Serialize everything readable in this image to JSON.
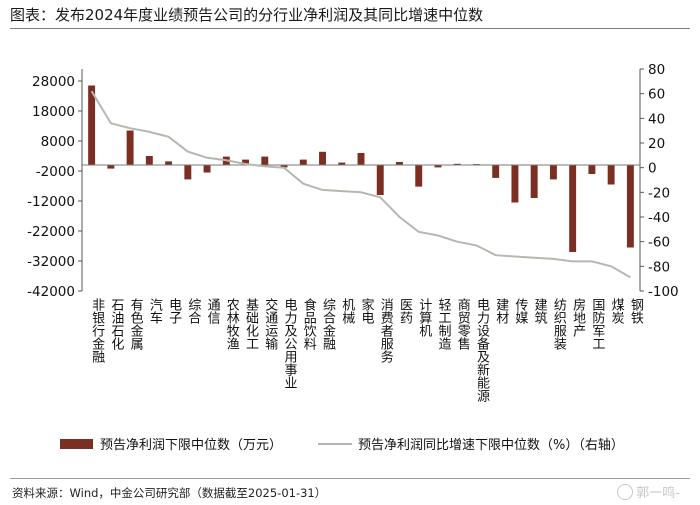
{
  "title": "图表：发布2024年度业绩预告公司的分行业净利润及其同比增速中位数",
  "source": "资料来源：Wind，中金公司研究部（数据截至2025-01-31）",
  "watermark": "郭一鸣-",
  "chart_data": {
    "type": "bar",
    "categories": [
      "非银行金融",
      "石油石化",
      "有色金属",
      "汽车",
      "电子",
      "综合",
      "通信",
      "农林牧渔",
      "基础化工",
      "交通运输",
      "电力及公用事业",
      "食品饮料",
      "综合金融",
      "机械",
      "家电",
      "消费者服务",
      "医药",
      "计算机",
      "轻工制造",
      "商贸零售",
      "电力设备及新能源",
      "建材",
      "传媒",
      "建筑",
      "纺织服装",
      "房地产",
      "国防军工",
      "煤炭",
      "钢铁"
    ],
    "series": [
      {
        "name": "预告净利润下限中位数（万元）",
        "type": "bar",
        "axis": "left",
        "color": "#7b2e22",
        "values": [
          26500,
          -1200,
          11500,
          3000,
          1200,
          -4800,
          -2500,
          2800,
          1800,
          2800,
          -800,
          1800,
          4400,
          800,
          4000,
          -10000,
          1000,
          -7200,
          -800,
          400,
          300,
          -4300,
          -12500,
          -11000,
          -4800,
          -29000,
          -3000,
          -6500,
          -27500
        ]
      },
      {
        "name": "预告净利润同比增速下限中位数（%）（右轴）",
        "type": "line",
        "axis": "right",
        "color": "#b7b7b0",
        "values": [
          62,
          36,
          32,
          29,
          25,
          13,
          8,
          6,
          3,
          1,
          0,
          -13,
          -18,
          -19,
          -20,
          -24,
          -40,
          -52,
          -55,
          -60,
          -63,
          -71,
          -72,
          -73,
          -74,
          -76,
          -76,
          -80,
          -89
        ]
      }
    ],
    "y_left": {
      "ticks": [
        28000,
        18000,
        8000,
        -2000,
        -12000,
        -22000,
        -32000,
        -42000
      ],
      "range": [
        -42000,
        32000
      ]
    },
    "y_right": {
      "ticks": [
        80,
        60,
        40,
        20,
        0,
        -20,
        -40,
        -60,
        -80,
        -100
      ],
      "range": [
        -100,
        80
      ]
    },
    "legend": {
      "position": "bottom"
    },
    "grid": false
  }
}
